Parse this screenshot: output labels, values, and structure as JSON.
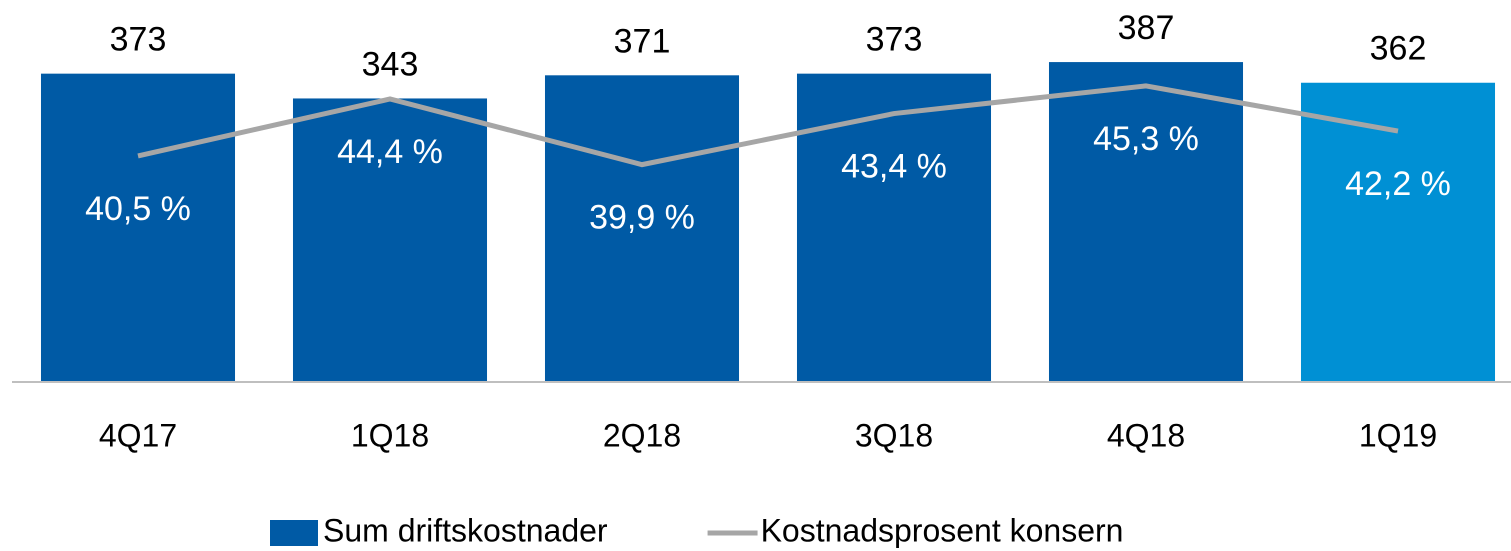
{
  "chart_data": {
    "type": "bar",
    "categories": [
      "4Q17",
      "1Q18",
      "2Q18",
      "3Q18",
      "4Q18",
      "1Q19"
    ],
    "series": [
      {
        "name": "Sum driftskostnader",
        "type": "bar",
        "color": "#005aa5",
        "colors": [
          "#005aa5",
          "#005aa5",
          "#005aa5",
          "#005aa5",
          "#005aa5",
          "#0090d4"
        ],
        "values": [
          373,
          343,
          371,
          373,
          387,
          362
        ]
      },
      {
        "name": "Kostnadsprosent konsern",
        "type": "line",
        "axis": "y2",
        "color": "#a6a6a6",
        "values": [
          40.5,
          44.4,
          39.9,
          43.4,
          45.3,
          42.2
        ],
        "value_labels": [
          "40,5 %",
          "44,4 %",
          "39,9 %",
          "43,4 %",
          "45,3 %",
          "42,2 %"
        ]
      }
    ],
    "ylim": [
      0,
      450
    ],
    "y2lim": [
      25,
      50.5
    ],
    "legend": "bottom"
  }
}
